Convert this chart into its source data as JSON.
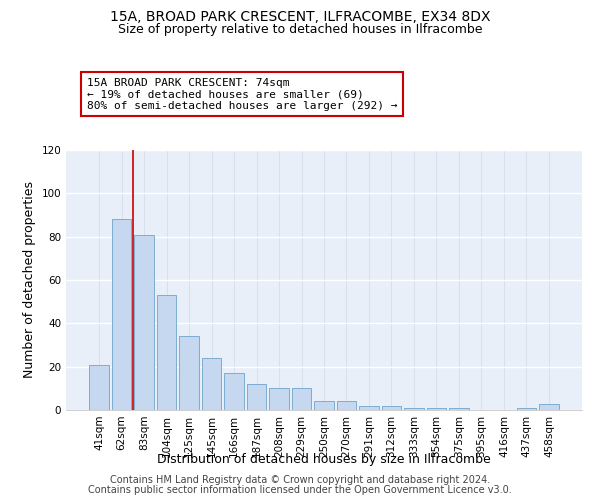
{
  "title_line1": "15A, BROAD PARK CRESCENT, ILFRACOMBE, EX34 8DX",
  "title_line2": "Size of property relative to detached houses in Ilfracombe",
  "xlabel": "Distribution of detached houses by size in Ilfracombe",
  "ylabel": "Number of detached properties",
  "categories": [
    "41sqm",
    "62sqm",
    "83sqm",
    "104sqm",
    "125sqm",
    "145sqm",
    "166sqm",
    "187sqm",
    "208sqm",
    "229sqm",
    "250sqm",
    "270sqm",
    "291sqm",
    "312sqm",
    "333sqm",
    "354sqm",
    "375sqm",
    "395sqm",
    "416sqm",
    "437sqm",
    "458sqm"
  ],
  "values": [
    21,
    88,
    81,
    53,
    34,
    24,
    17,
    12,
    10,
    10,
    4,
    4,
    2,
    2,
    1,
    1,
    1,
    0,
    0,
    1,
    3
  ],
  "bar_color": "#c5d8ef",
  "bar_edge_color": "#6ea4cc",
  "background_color": "#e8eff8",
  "ylim": [
    0,
    120
  ],
  "yticks": [
    0,
    20,
    40,
    60,
    80,
    100,
    120
  ],
  "property_line_x": 1.5,
  "property_line_color": "#cc0000",
  "annotation_line1": "15A BROAD PARK CRESCENT: 74sqm",
  "annotation_line2": "← 19% of detached houses are smaller (69)",
  "annotation_line3": "80% of semi-detached houses are larger (292) →",
  "annotation_box_color": "#ffffff",
  "annotation_border_color": "#cc0000",
  "footer_line1": "Contains HM Land Registry data © Crown copyright and database right 2024.",
  "footer_line2": "Contains public sector information licensed under the Open Government Licence v3.0.",
  "title_fontsize": 10,
  "subtitle_fontsize": 9,
  "axis_label_fontsize": 9,
  "tick_fontsize": 7.5,
  "annotation_fontsize": 8,
  "footer_fontsize": 7
}
